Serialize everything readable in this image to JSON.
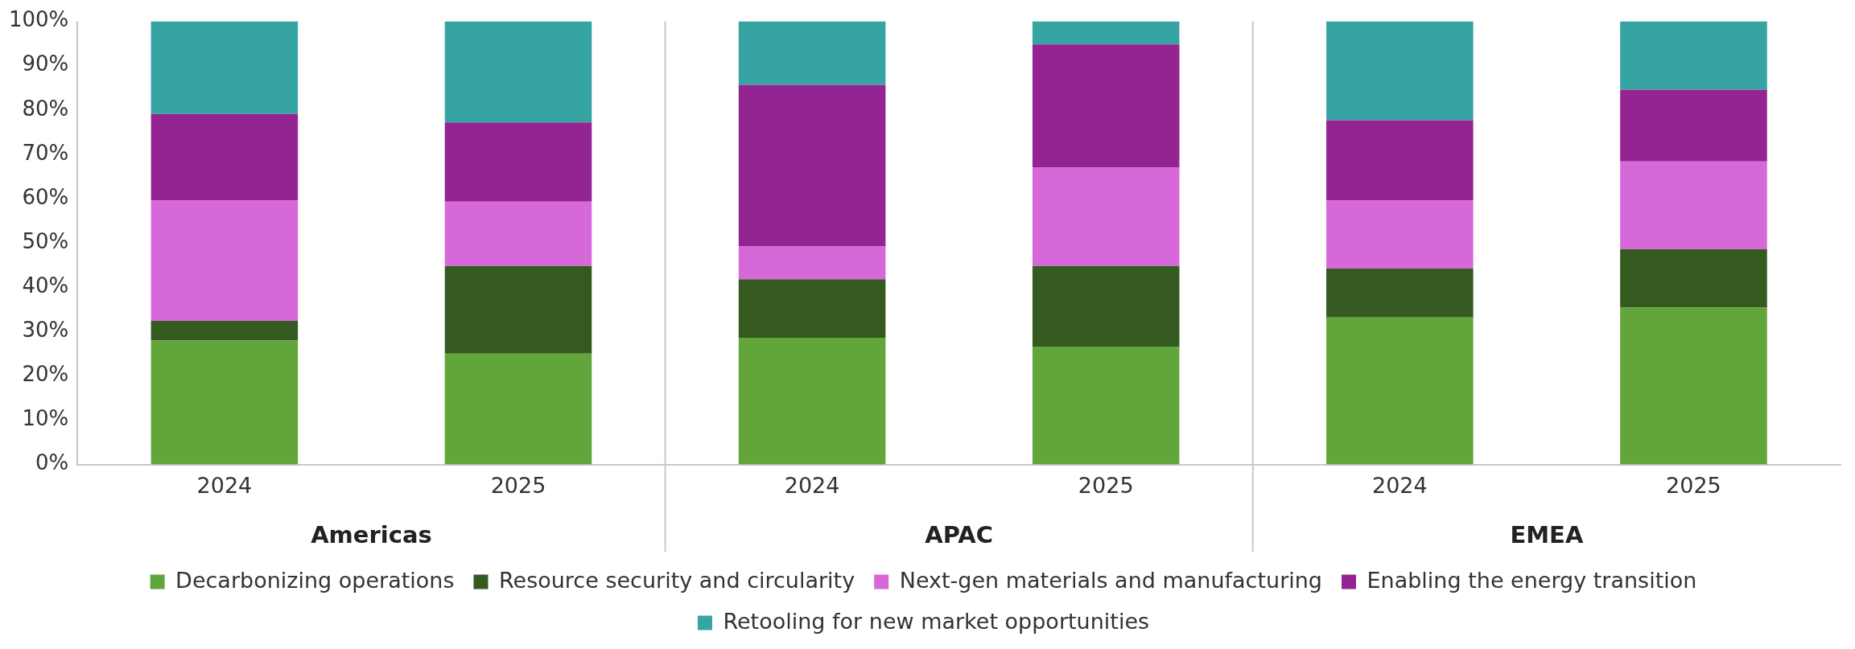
{
  "chart_data": {
    "type": "bar",
    "stacked": true,
    "categories": [
      "2024",
      "2025",
      "2024",
      "2025",
      "2024",
      "2025"
    ],
    "annotations": [
      "Americas",
      "APAC",
      "EMEA"
    ],
    "ylim": [
      0,
      100
    ],
    "yticks": [
      {
        "value": 0,
        "label": "0%"
      },
      {
        "value": 10,
        "label": "10%"
      },
      {
        "value": 20,
        "label": "20%"
      },
      {
        "value": 30,
        "label": "30%"
      },
      {
        "value": 40,
        "label": "40%"
      },
      {
        "value": 50,
        "label": "50%"
      },
      {
        "value": 60,
        "label": "60%"
      },
      {
        "value": 70,
        "label": "70%"
      },
      {
        "value": 80,
        "label": "80%"
      },
      {
        "value": 90,
        "label": "90%"
      },
      {
        "value": 100,
        "label": "100%"
      }
    ],
    "grid": false,
    "legend": "bottom",
    "series": [
      {
        "name": "Decarbonizing operations",
        "color": "#62a63b",
        "values": [
          28,
          25,
          28.6,
          26.6,
          33.2,
          35.4
        ]
      },
      {
        "name": "Resource security and circularity",
        "color": "#345a20",
        "values": [
          4.4,
          19.8,
          13.2,
          18.2,
          11,
          13.2
        ]
      },
      {
        "name": "Next-gen materials and manufacturing",
        "color": "#d768d9",
        "values": [
          27.2,
          14.5,
          7.4,
          22.2,
          15.4,
          19.8
        ]
      },
      {
        "name": "Enabling the energy transition",
        "color": "#932492",
        "values": [
          19.5,
          17.9,
          36.5,
          27.8,
          18.1,
          16.2
        ]
      },
      {
        "name": "Retooling for new market opportunities",
        "color": "#37a4a4",
        "values": [
          20.9,
          22.8,
          14.3,
          5.2,
          22.3,
          15.4
        ]
      }
    ]
  }
}
